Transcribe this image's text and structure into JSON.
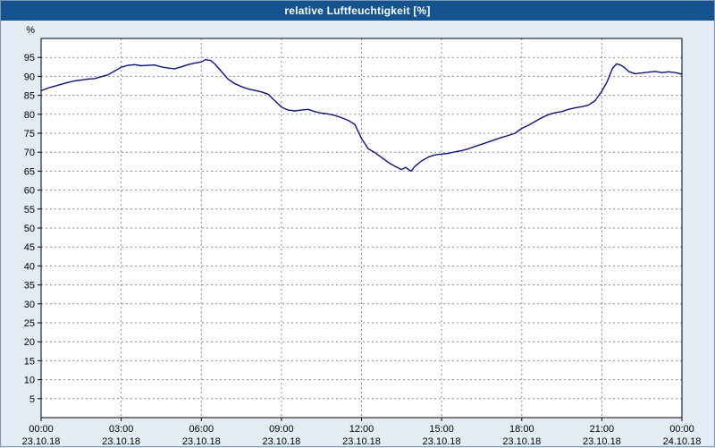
{
  "title": "relative Luftfeuchtigkeit [%]",
  "colors": {
    "titlebar_bg": "#15538e",
    "titlebar_text": "#ffffff",
    "chart_bg": "#e3ecf4",
    "plot_bg": "#ffffff",
    "grid": "#8a8a8a",
    "axis": "#000000",
    "line": "#10107e"
  },
  "chart_data": {
    "type": "line",
    "title": "relative Luftfeuchtigkeit [%]",
    "xlabel": "",
    "ylabel": "%",
    "xlim": [
      0,
      24
    ],
    "ylim": [
      0,
      100
    ],
    "grid": true,
    "legend_position": "none",
    "yticks": [
      5,
      10,
      15,
      20,
      25,
      30,
      35,
      40,
      45,
      50,
      55,
      60,
      65,
      70,
      75,
      80,
      85,
      90,
      95
    ],
    "xticks": [
      {
        "hour": 0,
        "time": "00:00",
        "date": "23.10.18"
      },
      {
        "hour": 3,
        "time": "03:00",
        "date": "23.10.18"
      },
      {
        "hour": 6,
        "time": "06:00",
        "date": "23.10.18"
      },
      {
        "hour": 9,
        "time": "09:00",
        "date": "23.10.18"
      },
      {
        "hour": 12,
        "time": "12:00",
        "date": "23.10.18"
      },
      {
        "hour": 15,
        "time": "15:00",
        "date": "23.10.18"
      },
      {
        "hour": 18,
        "time": "18:00",
        "date": "23.10.18"
      },
      {
        "hour": 21,
        "time": "21:00",
        "date": "23.10.18"
      },
      {
        "hour": 24,
        "time": "00:00",
        "date": "24.10.18"
      }
    ],
    "series": [
      {
        "name": "relative Luftfeuchtigkeit",
        "x_hours": [
          0,
          0.25,
          0.5,
          0.75,
          1,
          1.25,
          1.5,
          1.75,
          2,
          2.25,
          2.5,
          2.75,
          3,
          3.25,
          3.5,
          3.75,
          4,
          4.25,
          4.5,
          4.75,
          5,
          5.25,
          5.5,
          5.75,
          6,
          6.15,
          6.35,
          6.5,
          6.75,
          7,
          7.25,
          7.5,
          7.75,
          8,
          8.25,
          8.5,
          8.75,
          9,
          9.25,
          9.5,
          9.75,
          10,
          10.25,
          10.5,
          10.75,
          11,
          11.25,
          11.5,
          11.75,
          12,
          12.25,
          12.5,
          12.75,
          13,
          13.25,
          13.5,
          13.65,
          13.85,
          14,
          14.25,
          14.5,
          14.75,
          15,
          15.25,
          15.5,
          15.75,
          16,
          16.25,
          16.5,
          16.75,
          17,
          17.25,
          17.5,
          17.75,
          18,
          18.25,
          18.5,
          18.75,
          19,
          19.25,
          19.5,
          19.75,
          20,
          20.25,
          20.5,
          20.75,
          21,
          21.2,
          21.4,
          21.55,
          21.7,
          21.85,
          22,
          22.25,
          22.5,
          22.75,
          23,
          23.25,
          23.5,
          23.75,
          24
        ],
        "values": [
          86.2,
          86.9,
          87.4,
          87.9,
          88.4,
          88.8,
          89.0,
          89.3,
          89.4,
          89.9,
          90.4,
          91.4,
          92.4,
          92.9,
          93.1,
          92.8,
          92.9,
          93.0,
          92.5,
          92.2,
          92.0,
          92.5,
          93.1,
          93.5,
          93.8,
          94.4,
          94.2,
          93.3,
          91.3,
          89.3,
          88.1,
          87.3,
          86.7,
          86.3,
          85.9,
          85.3,
          83.6,
          81.9,
          81.1,
          80.9,
          81.1,
          81.3,
          80.7,
          80.3,
          80.1,
          79.7,
          79.1,
          78.4,
          77.3,
          73.6,
          70.9,
          69.9,
          68.6,
          67.3,
          66.3,
          65.4,
          66.0,
          65.0,
          66.3,
          67.7,
          68.7,
          69.3,
          69.5,
          69.7,
          70.1,
          70.4,
          70.9,
          71.5,
          72.1,
          72.7,
          73.3,
          73.9,
          74.4,
          75.0,
          76.3,
          77.1,
          78.1,
          79.1,
          79.9,
          80.4,
          80.7,
          81.3,
          81.7,
          82.0,
          82.4,
          83.6,
          86.1,
          88.6,
          92.1,
          93.3,
          93.0,
          92.3,
          91.3,
          90.7,
          90.9,
          91.1,
          91.3,
          91.0,
          91.2,
          91.0,
          90.6
        ]
      }
    ]
  }
}
